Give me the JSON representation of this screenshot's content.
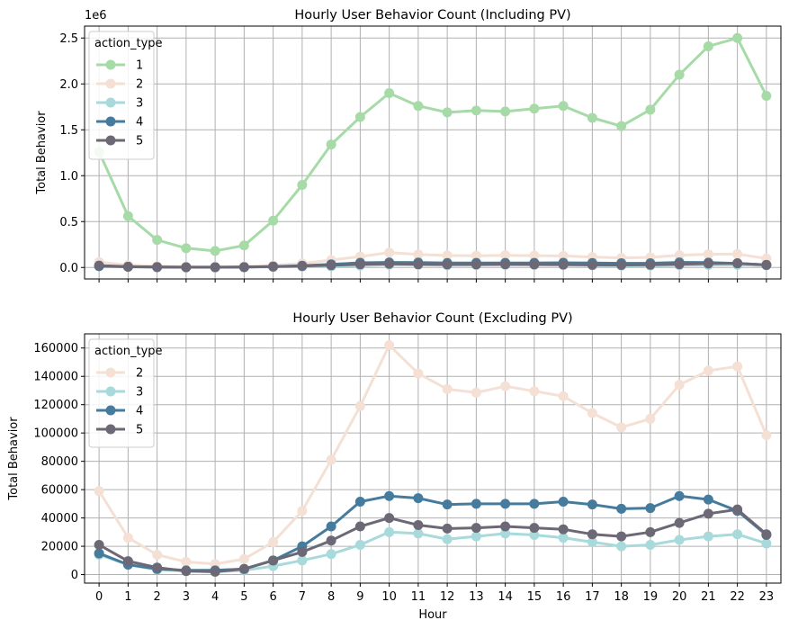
{
  "chart_data": [
    {
      "type": "line",
      "title": "Hourly User Behavior Count (Including PV)",
      "xlabel": "",
      "ylabel": "Total Behavior",
      "offset_label": "1e6",
      "x": [
        0,
        1,
        2,
        3,
        4,
        5,
        6,
        7,
        8,
        9,
        10,
        11,
        12,
        13,
        14,
        15,
        16,
        17,
        18,
        19,
        20,
        21,
        22,
        23
      ],
      "ylim": [
        -0.125,
        2.63
      ],
      "yticks": [
        0.0,
        0.5,
        1.0,
        1.5,
        2.0,
        2.5
      ],
      "ytick_labels": [
        "0.0",
        "0.5",
        "1.0",
        "1.5",
        "2.0",
        "2.5"
      ],
      "show_xtick_labels": false,
      "grid": true,
      "legend": {
        "title": "action_type",
        "placement": "top-left"
      },
      "series": [
        {
          "name": "1",
          "color": "#a6dba8",
          "values": [
            1.26,
            0.56,
            0.3,
            0.21,
            0.18,
            0.24,
            0.51,
            0.9,
            1.34,
            1.64,
            1.9,
            1.76,
            1.69,
            1.71,
            1.7,
            1.73,
            1.76,
            1.63,
            1.54,
            1.72,
            2.1,
            2.41,
            2.5,
            1.87
          ]
        },
        {
          "name": "2",
          "color": "#f4e0d4",
          "values": [
            0.059,
            0.026,
            0.014,
            0.009,
            0.007,
            0.011,
            0.023,
            0.045,
            0.081,
            0.119,
            0.162,
            0.142,
            0.131,
            0.128,
            0.133,
            0.129,
            0.126,
            0.114,
            0.104,
            0.11,
            0.134,
            0.144,
            0.147,
            0.098
          ]
        },
        {
          "name": "3",
          "color": "#a8dadc",
          "values": [
            0.014,
            0.007,
            0.003,
            0.002,
            0.002,
            0.003,
            0.006,
            0.01,
            0.014,
            0.021,
            0.03,
            0.029,
            0.025,
            0.027,
            0.029,
            0.028,
            0.026,
            0.023,
            0.02,
            0.021,
            0.025,
            0.027,
            0.028,
            0.022
          ]
        },
        {
          "name": "4",
          "color": "#457b9d",
          "values": [
            0.015,
            0.007,
            0.004,
            0.003,
            0.003,
            0.004,
            0.01,
            0.02,
            0.034,
            0.051,
            0.055,
            0.054,
            0.049,
            0.05,
            0.05,
            0.05,
            0.051,
            0.049,
            0.046,
            0.047,
            0.055,
            0.053,
            0.045,
            0.028
          ]
        },
        {
          "name": "5",
          "color": "#6d6875",
          "values": [
            0.021,
            0.009,
            0.005,
            0.002,
            0.002,
            0.004,
            0.01,
            0.016,
            0.024,
            0.034,
            0.04,
            0.035,
            0.033,
            0.033,
            0.034,
            0.033,
            0.032,
            0.028,
            0.027,
            0.03,
            0.036,
            0.043,
            0.046,
            0.028
          ]
        }
      ]
    },
    {
      "type": "line",
      "title": "Hourly User Behavior Count (Excluding PV)",
      "xlabel": "Hour",
      "ylabel": "Total Behavior",
      "x": [
        0,
        1,
        2,
        3,
        4,
        5,
        6,
        7,
        8,
        9,
        10,
        11,
        12,
        13,
        14,
        15,
        16,
        17,
        18,
        19,
        20,
        21,
        22,
        23
      ],
      "xtick_labels": [
        "0",
        "1",
        "2",
        "3",
        "4",
        "5",
        "6",
        "7",
        "8",
        "9",
        "10",
        "11",
        "12",
        "13",
        "14",
        "15",
        "16",
        "17",
        "18",
        "19",
        "20",
        "21",
        "22",
        "23"
      ],
      "ylim": [
        -6000,
        170000
      ],
      "yticks": [
        0,
        20000,
        40000,
        60000,
        80000,
        100000,
        120000,
        140000,
        160000
      ],
      "ytick_labels": [
        "0",
        "20000",
        "40000",
        "60000",
        "80000",
        "100000",
        "120000",
        "140000",
        "160000"
      ],
      "show_xtick_labels": true,
      "grid": true,
      "legend": {
        "title": "action_type",
        "placement": "top-left"
      },
      "series": [
        {
          "name": "2",
          "color": "#f4e0d4",
          "values": [
            59000,
            26000,
            14000,
            9000,
            7500,
            11000,
            23000,
            45000,
            81000,
            119000,
            162000,
            142000,
            131000,
            128500,
            133000,
            129500,
            126000,
            114000,
            104000,
            110000,
            134000,
            144000,
            147000,
            98500
          ]
        },
        {
          "name": "3",
          "color": "#a8dadc",
          "values": [
            14000,
            7000,
            3500,
            2500,
            2000,
            3000,
            6000,
            10000,
            14500,
            21000,
            30000,
            29000,
            25000,
            27000,
            29000,
            28000,
            26000,
            23000,
            20000,
            21000,
            24500,
            27000,
            28500,
            22000
          ]
        },
        {
          "name": "4",
          "color": "#457b9d",
          "values": [
            15000,
            7000,
            4000,
            3000,
            3000,
            4000,
            10000,
            20000,
            34000,
            51500,
            55500,
            54000,
            49500,
            50000,
            50000,
            50000,
            51500,
            49500,
            46500,
            47000,
            55500,
            53000,
            45000,
            28000
          ]
        },
        {
          "name": "5",
          "color": "#6d6875",
          "values": [
            21000,
            9500,
            5000,
            2500,
            2000,
            4000,
            10000,
            16000,
            24000,
            34000,
            40000,
            35000,
            32500,
            33000,
            34000,
            33000,
            32000,
            28500,
            27000,
            30000,
            36500,
            43000,
            46000,
            28500
          ]
        }
      ]
    }
  ]
}
